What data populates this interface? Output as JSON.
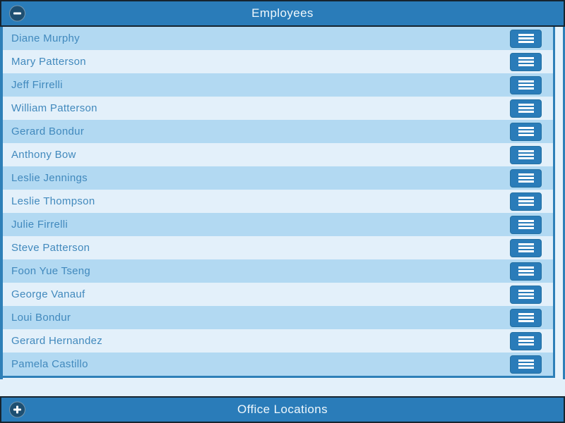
{
  "employees_panel": {
    "title": "Employees",
    "state": "expanded",
    "collapse_icon": "minus-icon",
    "row_menu_icon": "hamburger-icon",
    "employees": [
      "Diane Murphy",
      "Mary Patterson",
      "Jeff Firrelli",
      "William Patterson",
      "Gerard Bondur",
      "Anthony Bow",
      "Leslie Jennings",
      "Leslie Thompson",
      "Julie Firrelli",
      "Steve Patterson",
      "Foon Yue Tseng",
      "George Vanauf",
      "Loui Bondur",
      "Gerard Hernandez",
      "Pamela Castillo"
    ]
  },
  "office_locations_panel": {
    "title": "Office Locations",
    "state": "collapsed",
    "expand_icon": "plus-icon"
  },
  "colors": {
    "bar_background": "#2a7cb9",
    "bar_border": "#16242f",
    "icon_circle": "#1d4f72",
    "row_odd": "#b2d9f2",
    "row_even": "#e3f0fa",
    "list_border": "#2e80b8",
    "name_text": "#4189bd",
    "bar_text": "#eef7fc"
  }
}
